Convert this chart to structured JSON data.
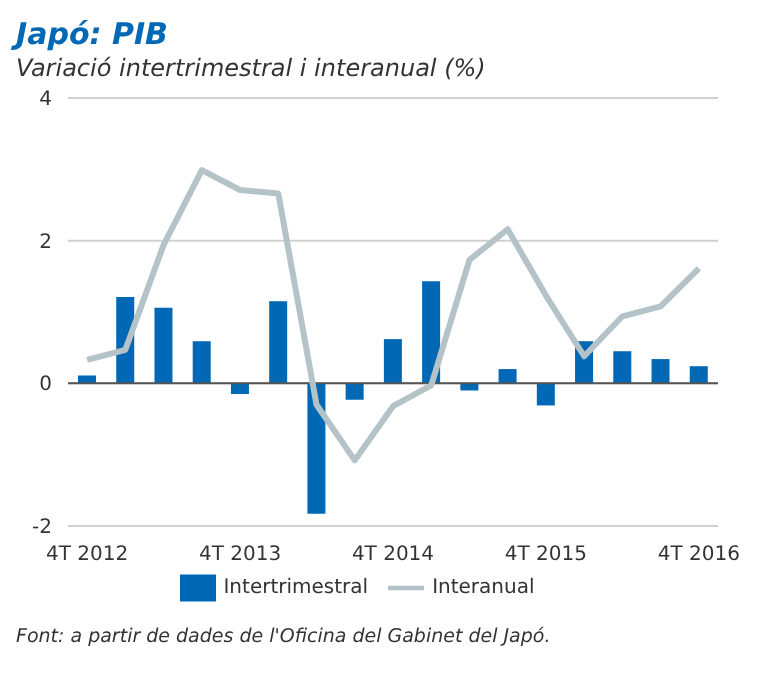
{
  "chart_data": {
    "type": "bar",
    "title": "Japó: PIB",
    "subtitle": "Variació intertrimestral i interanual (%)",
    "categories": [
      "4T 2012",
      null,
      null,
      null,
      "4T 2013",
      null,
      null,
      null,
      "4T 2014",
      null,
      null,
      null,
      "4T 2015",
      null,
      null,
      null,
      "4T 2016"
    ],
    "series": [
      {
        "name": "Intertrimestral",
        "color": "#0068b4",
        "values": [
          0.11,
          1.21,
          1.06,
          0.59,
          -0.15,
          1.15,
          -1.83,
          -0.23,
          0.62,
          1.43,
          -0.1,
          0.2,
          -0.31,
          0.59,
          0.45,
          0.34,
          0.24
        ]
      },
      {
        "name": "Interanual",
        "type": "line",
        "color": "#b3c3c7",
        "values": [
          0.33,
          0.47,
          1.94,
          2.99,
          2.71,
          2.66,
          -0.3,
          -1.08,
          -0.32,
          -0.03,
          1.73,
          2.16,
          1.23,
          0.38,
          0.94,
          1.08,
          1.61
        ]
      }
    ],
    "ylim": [
      -2,
      4
    ],
    "yticks": [
      -2,
      0,
      2,
      4
    ],
    "grid": "y",
    "legend": "bottom",
    "marker": "none",
    "annotations": [
      "Font: a partir de dades de l'Oficina del Gabinet del Japó."
    ]
  }
}
